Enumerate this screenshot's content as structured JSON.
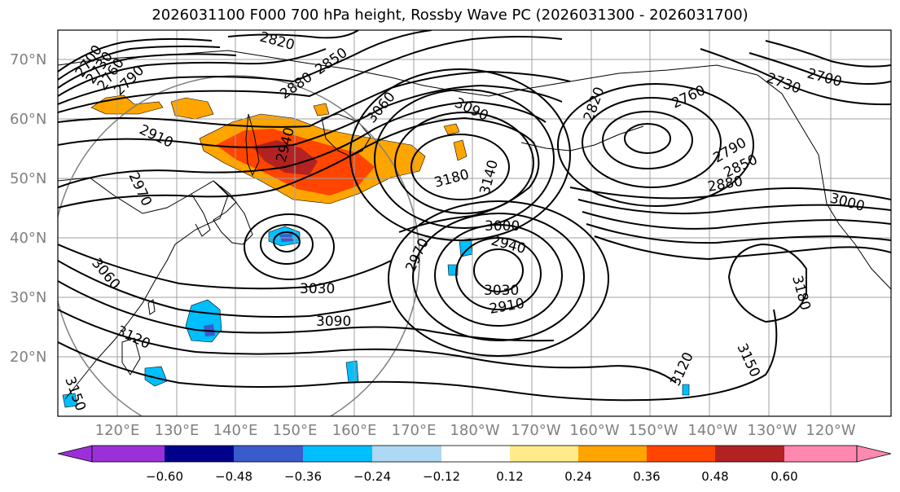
{
  "title": "2026031100 F000 700 hPa height, Rossby Wave PC (2026031300 - 2026031700)",
  "lat_labels": [
    "70°N",
    "60°N",
    "50°N",
    "40°N",
    "30°N",
    "20°N"
  ],
  "lon_labels": [
    "120°E",
    "130°E",
    "140°E",
    "150°E",
    "160°E",
    "170°E",
    "180°W",
    "170°W",
    "160°W",
    "150°W",
    "140°W",
    "130°W",
    "120°W"
  ],
  "contour_labels": [
    "2700",
    "2730",
    "2760",
    "2790",
    "2820",
    "2850",
    "2880",
    "2910",
    "2940",
    "2970",
    "3000",
    "3030",
    "3060",
    "3090",
    "3120",
    "3140",
    "3150",
    "3180",
    "2700",
    "2730",
    "2760",
    "2790",
    "2820",
    "2850",
    "2880",
    "2910",
    "2940",
    "2970",
    "3000",
    "3030",
    "3060",
    "3090",
    "3120",
    "3150",
    "3180"
  ],
  "colorbar": {
    "ticks": [
      "−0.60",
      "−0.48",
      "−0.36",
      "−0.24",
      "−0.12",
      "0.12",
      "0.24",
      "0.36",
      "0.48",
      "0.60"
    ],
    "colors": [
      "#9b30d9",
      "#00008b",
      "#3a5bcc",
      "#00bfff",
      "#add8f6",
      "#ffffff",
      "#ffeb8a",
      "#ffa500",
      "#ff4500",
      "#b22222",
      "#ff88b0"
    ]
  },
  "anomaly_colors": {
    "orange": "#ffa500",
    "red_orange": "#ff4500",
    "dark_red": "#b22222",
    "sky_blue": "#00bfff",
    "royal_blue": "#3a5bcc"
  }
}
